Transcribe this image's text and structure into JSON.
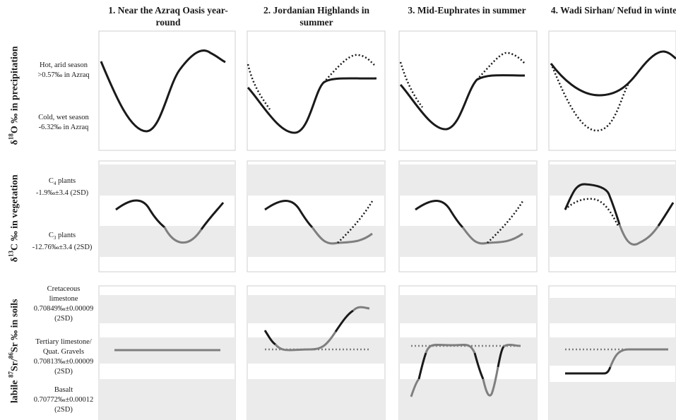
{
  "columns": [
    {
      "title": "1. Near the Azraq Oasis year-round"
    },
    {
      "title": "2. Jordanian Highlands in summer"
    },
    {
      "title": "3. Mid-Euphrates in summer"
    },
    {
      "title": "4. Wadi Sirhan/ Nefud in winter"
    }
  ],
  "rows": [
    {
      "label_parts": {
        "pre": "δ",
        "sup": "18",
        "post": "O ‰ in precipitation"
      },
      "side_labels": [
        {
          "lines": [
            "Hot, arid season",
            ">0.57‰ in Azraq"
          ]
        },
        {
          "lines": [
            "Cold, wet season",
            "-6.32‰ in Azraq"
          ]
        }
      ]
    },
    {
      "label_parts": {
        "pre": "δ",
        "sup": "13",
        "post": "C ‰ in vegetation"
      },
      "side_labels": [
        {
          "name_pre": "C",
          "name_sub": "4",
          "name_post": " plants",
          "value": "-1.9‰±3.4 (2SD)"
        },
        {
          "name_pre": "C",
          "name_sub": "3",
          "name_post": " plants",
          "value": "-12.76‰±3.4 (2SD)"
        }
      ]
    },
    {
      "label_parts": {
        "pre": "labile ",
        "sup1": "87",
        "mid": "Sr/",
        "sup2": "86",
        "post": "Sr ‰ in soils"
      },
      "side_labels": [
        {
          "lines": [
            "Cretaceous",
            "limestone",
            "0.70849‰±0.00009",
            "(2SD)"
          ]
        },
        {
          "lines": [
            "Tertiary limestone/",
            "Quat. Gravels",
            "0.70813‰±0.00009",
            "(2SD)"
          ]
        },
        {
          "lines": [
            "Basalt",
            "0.70772‰±0.00012",
            "(2SD)"
          ]
        }
      ]
    }
  ],
  "colors": {
    "solid_line": "#1a1a1a",
    "gray_line": "#7f7f7f",
    "band": "#ebebeb",
    "panel_border": "#cfcfcf"
  }
}
